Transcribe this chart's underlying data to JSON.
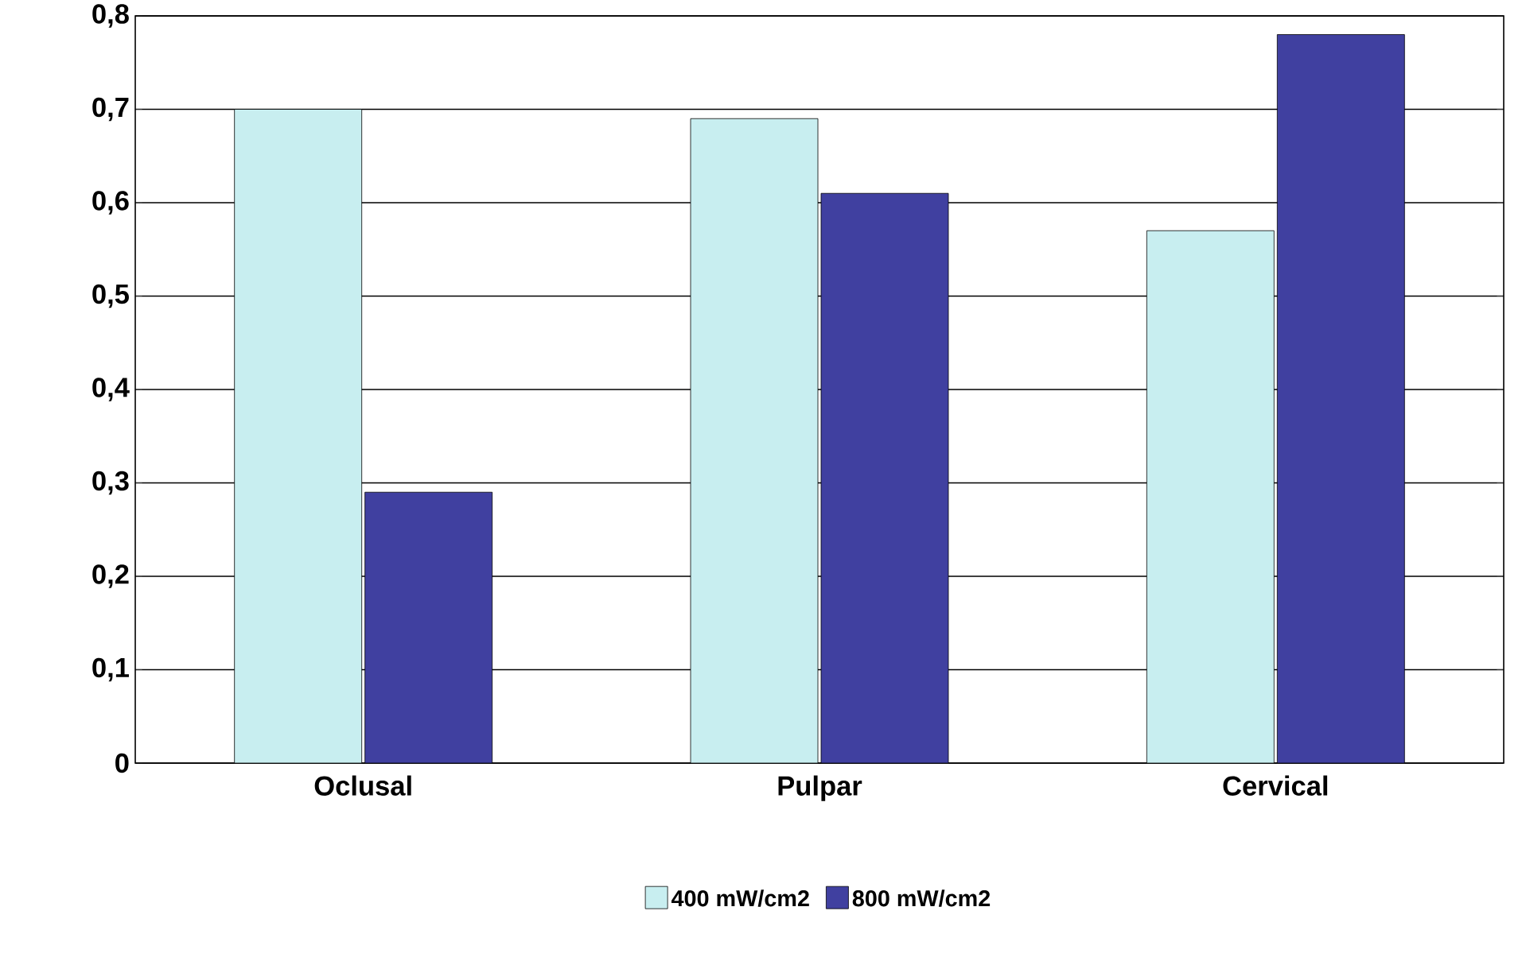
{
  "chart_data": {
    "type": "bar",
    "categories": [
      "Oclusal",
      "Pulpar",
      "Cervical"
    ],
    "series": [
      {
        "name": "400 mW/cm2",
        "color": "#c8eef0",
        "values": [
          0.7,
          0.69,
          0.57
        ]
      },
      {
        "name": "800 mW/cm2",
        "color": "#4040a0",
        "values": [
          0.29,
          0.61,
          0.78
        ]
      }
    ],
    "ylim": [
      0,
      0.8
    ],
    "yticks": [
      0,
      {
        "value": 0.1,
        "label": "0,1"
      },
      {
        "value": 0.2,
        "label": "0,2"
      },
      {
        "value": 0.3,
        "label": "0,3"
      },
      {
        "value": 0.4,
        "label": "0,4"
      },
      {
        "value": 0.5,
        "label": "0,5"
      },
      {
        "value": 0.6,
        "label": "0,6"
      },
      {
        "value": 0.7,
        "label": "0,7"
      },
      {
        "value": 0.8,
        "label": "0,8"
      }
    ],
    "grid": "y",
    "legend": "bottom"
  }
}
